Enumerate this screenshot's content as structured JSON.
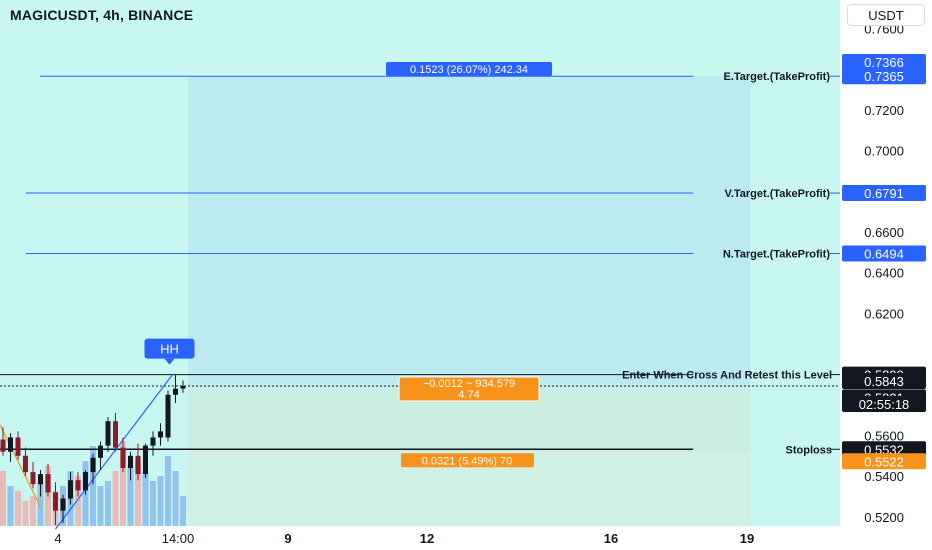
{
  "header": {
    "title": "MAGICUSDT, 4h, BINANCE",
    "currency": "USDT"
  },
  "chart_data": {
    "type": "candlestick",
    "symbol": "MAGICUSDT",
    "timeframe": "4h",
    "exchange": "BINANCE",
    "y_ticks": [
      "0.7600",
      "0.7200",
      "0.7000",
      "0.6600",
      "0.6400",
      "0.6200",
      "0.5600",
      "0.5400",
      "0.5200"
    ],
    "x_ticks": [
      "4",
      "14:00",
      "9",
      "12",
      "16",
      "19"
    ],
    "ylim": [
      0.5155,
      0.7715
    ],
    "levels": [
      {
        "label": "E.Target.(TakeProfit)",
        "value": 0.7365,
        "tag": "0.7365",
        "color": "#2962ff"
      },
      {
        "label": "V.Target.(TakeProfit)",
        "value": 0.6791,
        "tag": "0.6791",
        "color": "#2962ff"
      },
      {
        "label": "N.Target.(TakeProfit)",
        "value": 0.6494,
        "tag": "0.6494",
        "color": "#2962ff"
      },
      {
        "label": "Enter When Cross And Retest this Level",
        "value": 0.5899,
        "tag": "0.5899",
        "color": "#131722"
      },
      {
        "label": "Stoploss",
        "value": 0.5532,
        "tag": "0.5532",
        "color": "#131722"
      }
    ],
    "price_tags": [
      {
        "value": 0.7366,
        "text": "0.7366",
        "color": "#2962ff"
      },
      {
        "value": 0.5843,
        "text": "0.5843",
        "color": "#131722"
      },
      {
        "value": 0.5831,
        "text": "0.5831",
        "color": "#131722"
      },
      {
        "value": 0.5522,
        "text": "0.5522",
        "color": "#f7931a"
      }
    ],
    "countdown": "02:55:18",
    "pattern_label": "HH",
    "position": {
      "entry": 0.5843,
      "target": 0.7366,
      "stop": 0.5522,
      "target_text": "0.1523 (26.07%) 242.34",
      "stop_text": "0.0321 (5.49%) 70",
      "center_text_1": "−0.0012 ~ 934.579",
      "center_text_2": "4.74"
    },
    "candles": [
      {
        "o": 0.558,
        "h": 0.564,
        "l": 0.55,
        "c": 0.552
      },
      {
        "o": 0.552,
        "h": 0.561,
        "l": 0.547,
        "c": 0.559
      },
      {
        "o": 0.559,
        "h": 0.562,
        "l": 0.548,
        "c": 0.55
      },
      {
        "o": 0.55,
        "h": 0.554,
        "l": 0.54,
        "c": 0.542
      },
      {
        "o": 0.542,
        "h": 0.547,
        "l": 0.534,
        "c": 0.536
      },
      {
        "o": 0.536,
        "h": 0.543,
        "l": 0.53,
        "c": 0.541
      },
      {
        "o": 0.541,
        "h": 0.546,
        "l": 0.53,
        "c": 0.532
      },
      {
        "o": 0.532,
        "h": 0.537,
        "l": 0.516,
        "c": 0.523
      },
      {
        "o": 0.523,
        "h": 0.531,
        "l": 0.517,
        "c": 0.529
      },
      {
        "o": 0.529,
        "h": 0.542,
        "l": 0.526,
        "c": 0.538
      },
      {
        "o": 0.538,
        "h": 0.542,
        "l": 0.53,
        "c": 0.533
      },
      {
        "o": 0.533,
        "h": 0.543,
        "l": 0.531,
        "c": 0.542
      },
      {
        "o": 0.542,
        "h": 0.551,
        "l": 0.536,
        "c": 0.549
      },
      {
        "o": 0.549,
        "h": 0.557,
        "l": 0.543,
        "c": 0.555
      },
      {
        "o": 0.555,
        "h": 0.569,
        "l": 0.552,
        "c": 0.567
      },
      {
        "o": 0.567,
        "h": 0.571,
        "l": 0.552,
        "c": 0.554
      },
      {
        "o": 0.554,
        "h": 0.559,
        "l": 0.542,
        "c": 0.544
      },
      {
        "o": 0.544,
        "h": 0.552,
        "l": 0.538,
        "c": 0.55
      },
      {
        "o": 0.55,
        "h": 0.556,
        "l": 0.538,
        "c": 0.541
      },
      {
        "o": 0.541,
        "h": 0.556,
        "l": 0.539,
        "c": 0.555
      },
      {
        "o": 0.555,
        "h": 0.562,
        "l": 0.55,
        "c": 0.559
      },
      {
        "o": 0.559,
        "h": 0.566,
        "l": 0.555,
        "c": 0.562
      },
      {
        "o": 0.559,
        "h": 0.582,
        "l": 0.557,
        "c": 0.58
      },
      {
        "o": 0.58,
        "h": 0.5899,
        "l": 0.576,
        "c": 0.583
      },
      {
        "o": 0.583,
        "h": 0.587,
        "l": 0.581,
        "c": 0.5843
      }
    ],
    "volume": [
      0.55,
      0.4,
      0.35,
      0.25,
      0.3,
      0.45,
      0.6,
      0.35,
      0.4,
      0.55,
      0.5,
      0.65,
      0.8,
      0.4,
      0.45,
      0.55,
      0.85,
      0.6,
      0.65,
      0.55,
      0.45,
      0.5,
      0.7,
      0.55,
      0.3
    ]
  }
}
